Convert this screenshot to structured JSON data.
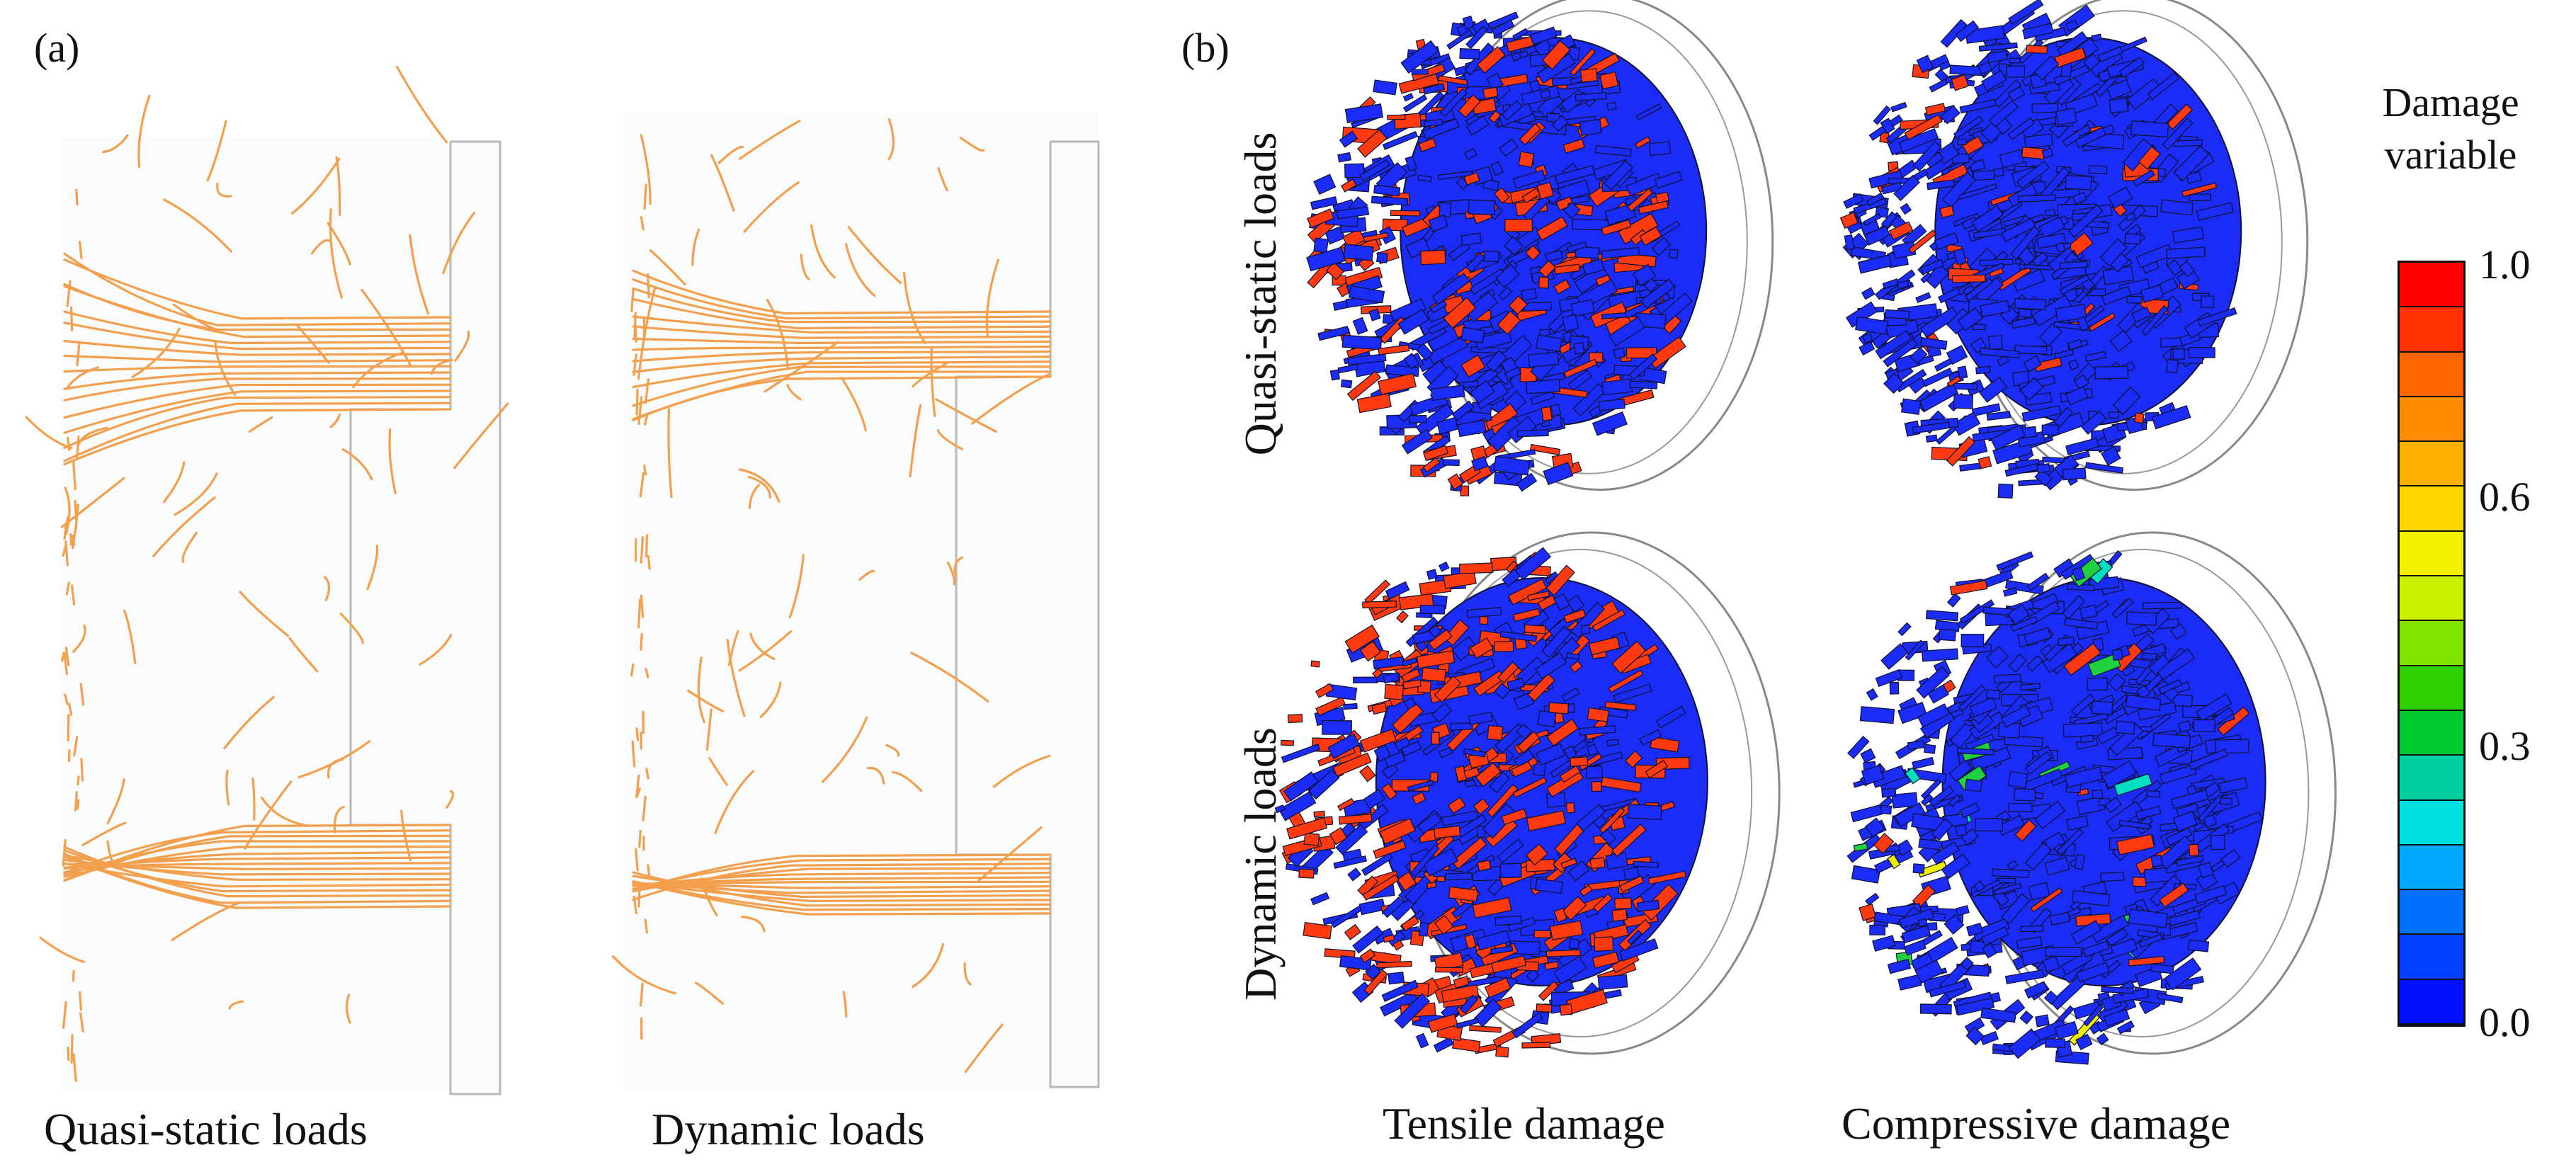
{
  "panel_a": {
    "tag": "(a)",
    "left_caption": "Quasi-static loads",
    "right_caption": "Dynamic loads",
    "crack_color": "#f2a04e"
  },
  "panel_b": {
    "tag": "(b)",
    "row_labels": [
      "Quasi-static loads",
      "Dynamic loads"
    ],
    "col_captions": [
      "Tensile damage",
      "Compressive damage"
    ],
    "colorbar": {
      "title_line1": "Damage",
      "title_line2": "variable",
      "ticks": [
        "1.0",
        "0.6",
        "0.3",
        "0.0"
      ],
      "colors": [
        "#ff0000",
        "#ff3300",
        "#ff6600",
        "#ff8c00",
        "#ffb000",
        "#ffd700",
        "#f5f000",
        "#c8f000",
        "#80e000",
        "#30d000",
        "#00c830",
        "#00d0a0",
        "#00e0e0",
        "#00a8ff",
        "#0070ff",
        "#0040ff",
        "#0010ff"
      ]
    },
    "damage_colors": {
      "base": "#1a2cf5",
      "tensile": "#ff3a10",
      "compressive": "#ff4010",
      "edge": "#101030"
    }
  }
}
